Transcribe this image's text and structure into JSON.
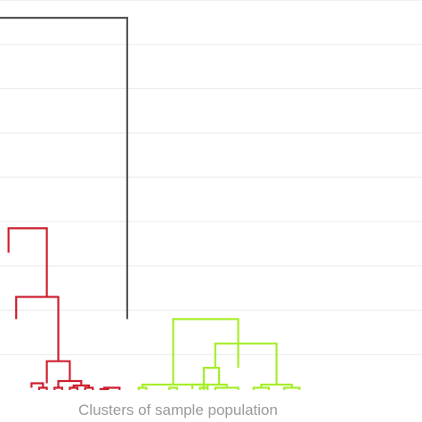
{
  "chart_data": {
    "type": "dendrogram",
    "title": "",
    "xlabel": "Clusters of sample population",
    "ylabel": "",
    "ylim": [
      0,
      8.4
    ],
    "gridlines_y": [
      0.8,
      1.8,
      2.8,
      3.8,
      4.8,
      5.8,
      6.8,
      7.8,
      8.8
    ],
    "grid": true,
    "colors": {
      "root": "#555555",
      "cluster_red": "#cc1f2e",
      "cluster_green": "#a6ee2a",
      "grid": "#e9e9e9",
      "label": "#9a9a9a"
    },
    "clusters": [
      {
        "color_key": "cluster_red",
        "leaf_positions": [
          -1,
          0,
          2,
          3,
          4,
          5,
          7,
          8,
          9,
          10,
          11,
          12
        ]
      },
      {
        "color_key": "cluster_green",
        "leaf_positions": [
          13,
          14,
          15,
          16,
          17,
          18,
          19,
          20,
          21,
          22,
          23,
          24,
          25,
          26
        ]
      }
    ],
    "links": [
      {
        "x": [
          -10,
          -10,
          11.5,
          11.5
        ],
        "y": [
          7.6,
          8.4,
          8.4,
          1.6
        ],
        "color_key": "root"
      },
      {
        "x": [
          -4,
          -4,
          1,
          1
        ],
        "y": [
          3.1,
          3.65,
          3.65,
          2.1
        ],
        "color_key": "cluster_red"
      },
      {
        "x": [
          -3,
          -3,
          2.5,
          2.5
        ],
        "y": [
          1.6,
          2.1,
          2.1,
          0.65
        ],
        "color_key": "cluster_red"
      },
      {
        "x": [
          1,
          1,
          4,
          4
        ],
        "y": [
          0.15,
          0.65,
          0.65,
          0.2
        ],
        "color_key": "cluster_red"
      },
      {
        "x": [
          -1,
          -1,
          0.5,
          0.5
        ],
        "y": [
          0.05,
          0.15,
          0.15,
          0.05
        ],
        "color_key": "cluster_red"
      },
      {
        "x": [
          0,
          0,
          1,
          1
        ],
        "y": [
          0,
          0.05,
          0.05,
          0
        ],
        "color_key": "cluster_red"
      },
      {
        "x": [
          2.5,
          2.5,
          5.5,
          5.5
        ],
        "y": [
          0.05,
          0.2,
          0.2,
          0.1
        ],
        "color_key": "cluster_red"
      },
      {
        "x": [
          2,
          2,
          3,
          3
        ],
        "y": [
          0,
          0.05,
          0.05,
          0
        ],
        "color_key": "cluster_red"
      },
      {
        "x": [
          4.5,
          4.5,
          6.5,
          6.5
        ],
        "y": [
          0.05,
          0.1,
          0.1,
          0.05
        ],
        "color_key": "cluster_red"
      },
      {
        "x": [
          4,
          4,
          5,
          5
        ],
        "y": [
          0,
          0.05,
          0.05,
          0
        ],
        "color_key": "cluster_red"
      },
      {
        "x": [
          6,
          6,
          7,
          7
        ],
        "y": [
          0,
          0.05,
          0.05,
          0
        ],
        "color_key": "cluster_red"
      },
      {
        "x": [
          8.5,
          8.5,
          10.5,
          10.5
        ],
        "y": [
          0,
          0.05,
          0.05,
          0
        ],
        "color_key": "cluster_red"
      },
      {
        "x": [
          8,
          8,
          9,
          9
        ],
        "y": [
          0,
          0.02,
          0.02,
          0
        ],
        "color_key": "cluster_red"
      },
      {
        "x": [
          17.5,
          17.5,
          26,
          26
        ],
        "y": [
          0.12,
          1.6,
          1.6,
          0.5
        ],
        "color_key": "cluster_green"
      },
      {
        "x": [
          23,
          23,
          31,
          31
        ],
        "y": [
          0.5,
          1.05,
          1.05,
          0.12
        ],
        "color_key": "cluster_green"
      },
      {
        "x": [
          21.5,
          21.5,
          23.5,
          23.5
        ],
        "y": [
          0,
          0.5,
          0.5,
          0.12
        ],
        "color_key": "cluster_green"
      },
      {
        "x": [
          21,
          21,
          22,
          22
        ],
        "y": [
          0,
          0.05,
          0.05,
          0
        ],
        "color_key": "cluster_green"
      },
      {
        "x": [
          13.5,
          13.5,
          22,
          22
        ],
        "y": [
          0.05,
          0.12,
          0.12,
          0.05
        ],
        "color_key": "cluster_green"
      },
      {
        "x": [
          13,
          13,
          14,
          14
        ],
        "y": [
          0,
          0.05,
          0.05,
          0
        ],
        "color_key": "cluster_green"
      },
      {
        "x": [
          17,
          17,
          18,
          18
        ],
        "y": [
          0,
          0.05,
          0.05,
          0
        ],
        "color_key": "cluster_green"
      },
      {
        "x": [
          20,
          20,
          24.5,
          24.5
        ],
        "y": [
          0.02,
          0.12,
          0.12,
          0.05
        ],
        "color_key": "cluster_green"
      },
      {
        "x": [
          23,
          23,
          26,
          26
        ],
        "y": [
          0,
          0.05,
          0.05,
          0
        ],
        "color_key": "cluster_green"
      },
      {
        "x": [
          29,
          29,
          33,
          33
        ],
        "y": [
          0.05,
          0.12,
          0.12,
          0.05
        ],
        "color_key": "cluster_green"
      },
      {
        "x": [
          28,
          28,
          30,
          30
        ],
        "y": [
          0,
          0.05,
          0.05,
          0
        ],
        "color_key": "cluster_green"
      },
      {
        "x": [
          32,
          32,
          34,
          34
        ],
        "y": [
          0,
          0.05,
          0.05,
          0
        ],
        "color_key": "cluster_green"
      }
    ]
  }
}
